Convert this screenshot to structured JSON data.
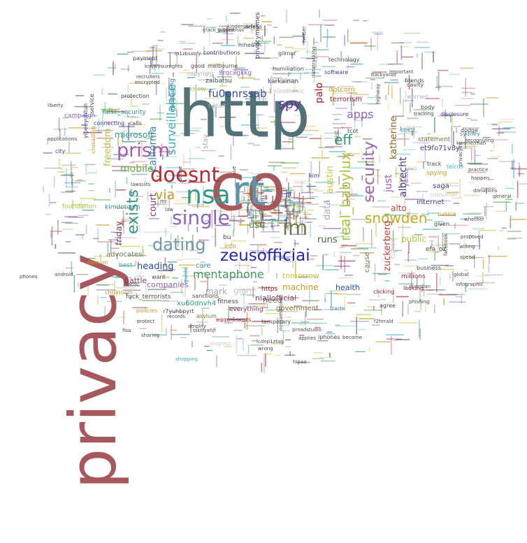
{
  "words": [
    {
      "text": "privacy",
      "color": "#a6585c"
    },
    {
      "text": "http",
      "color": "#52727a"
    },
    {
      "text": "co",
      "color": "#a6585c"
    },
    {
      "text": "rt",
      "color": "#5e93aa"
    },
    {
      "text": "nsa",
      "color": "#2e9a88"
    },
    {
      "text": "doesnt",
      "color": "#b4283a"
    },
    {
      "text": "prism",
      "color": "#a35cae"
    },
    {
      "text": "single",
      "color": "#8e62c0"
    },
    {
      "text": "dating",
      "color": "#6e9aa8"
    },
    {
      "text": "exists",
      "color": "#2e9a88"
    },
    {
      "text": "zeusofficiai",
      "color": "#2626a8"
    },
    {
      "text": "im",
      "color": "#6e7a52"
    },
    {
      "text": "mentaphone",
      "color": "#3f9a5e"
    },
    {
      "text": "security",
      "color": "#9a6aa8"
    },
    {
      "text": "real_babylux",
      "color": "#a8c840"
    },
    {
      "text": "snowden",
      "color": "#c4a820"
    },
    {
      "text": "surveillance",
      "color": "#3fb0c8"
    },
    {
      "text": "spy",
      "color": "#6a2ea8"
    },
    {
      "text": "eff",
      "color": "#2e9a88"
    },
    {
      "text": "via",
      "color": "#c89a20"
    },
    {
      "text": "fu0onrssab",
      "color": "#3a4a9a"
    },
    {
      "text": "mobile",
      "color": "#5eb040"
    },
    {
      "text": "california",
      "color": "#3a8aa0"
    },
    {
      "text": "court",
      "color": "#8a3a6a"
    },
    {
      "text": "apps",
      "color": "#8e62c0"
    },
    {
      "text": "just",
      "color": "#a35cae"
    },
    {
      "text": "katherine",
      "color": "#8a6a20"
    },
    {
      "text": "albrecht",
      "color": "#4a3a8a"
    },
    {
      "text": "zuckerberg",
      "color": "#c84040"
    },
    {
      "text": "alto",
      "color": "#c84040"
    },
    {
      "text": "palo",
      "color": "#a82030"
    },
    {
      "text": "data",
      "color": "#a8a8c8"
    },
    {
      "text": "austin",
      "color": "#c8c840"
    },
    {
      "text": "heading",
      "color": "#2e4ab0"
    },
    {
      "text": "runs",
      "color": "#4a6a4a"
    },
    {
      "text": "use",
      "color": "#6e7a52"
    },
    {
      "text": "friday",
      "color": "#8a3a6a"
    },
    {
      "text": "freedom",
      "color": "#c8b840"
    },
    {
      "text": "microsoft",
      "color": "#2e9a88"
    },
    {
      "text": "public",
      "color": "#a8c840"
    },
    {
      "text": "machine",
      "color": "#c89a20"
    },
    {
      "text": "tomorrow",
      "color": "#c8c840"
    },
    {
      "text": "mark",
      "color": "#a8a8a8"
    },
    {
      "text": "giant",
      "color": "#c8c8c8"
    },
    {
      "text": "need",
      "color": "#6e7a52"
    },
    {
      "text": "health",
      "color": "#2e4ab0"
    },
    {
      "text": "niallofficial",
      "color": "#8a3a6a"
    },
    {
      "text": "government",
      "color": "#8a6a20"
    },
    {
      "text": "battle",
      "color": "#8a3a6a"
    },
    {
      "text": "companies",
      "color": "#8e62c0"
    },
    {
      "text": "care",
      "color": "#3a8aa0"
    },
    {
      "text": "advocates",
      "color": "#6e7a52"
    },
    {
      "text": "best",
      "color": "#3fb0c8"
    },
    {
      "text": "internet",
      "color": "#4a3a8a"
    },
    {
      "text": "tuned",
      "color": "#c8c8c8"
    },
    {
      "text": "cause",
      "color": "#6e7a52"
    },
    {
      "text": "efa_oz",
      "color": "#4a4a4a"
    },
    {
      "text": "millions",
      "color": "#a82030"
    },
    {
      "text": "terrorism",
      "color": "#a82030"
    },
    {
      "text": "dotcom",
      "color": "#c89a20"
    },
    {
      "text": "et9fo71v8y",
      "color": "#4a3a8a"
    },
    {
      "text": "statement",
      "color": "#6e7a52"
    },
    {
      "text": "keep",
      "color": "#3a8aa0"
    },
    {
      "text": "saga",
      "color": "#4a3a8a"
    },
    {
      "text": "russia",
      "color": "#c89a20"
    },
    {
      "text": "xu60dnvh4",
      "color": "#2e9a88"
    },
    {
      "text": "fuck_terrorists",
      "color": "#4a4a4a"
    },
    {
      "text": "everything",
      "color": "#8a3a6a"
    },
    {
      "text": "fitness",
      "color": "#4a4a4a"
    },
    {
      "text": "https",
      "color": "#a82030"
    },
    {
      "text": "bu",
      "color": "#4a4a4a"
    },
    {
      "text": "info",
      "color": "#c89a20"
    },
    {
      "text": "electronic",
      "color": "#c8c8c8"
    },
    {
      "text": "karkainan",
      "color": "#4a3a8a"
    },
    {
      "text": "zaibatsu",
      "color": "#4a4a4a"
    },
    {
      "text": "behalf",
      "color": "#a8a8a8"
    },
    {
      "text": "stay",
      "color": "#a8a8a8"
    },
    {
      "text": "frontier",
      "color": "#6e7a52"
    },
    {
      "text": "know",
      "color": "#a8c840"
    },
    {
      "text": "copyright",
      "color": "#a8a8a8"
    },
    {
      "text": "8rqcxgkkg",
      "color": "#8e62c0"
    },
    {
      "text": "privacymemes",
      "color": "#4a3a8a"
    },
    {
      "text": "humiliation",
      "color": "#4a4a4a"
    },
    {
      "text": "melbourne",
      "color": "#4a4a4a"
    },
    {
      "text": "good",
      "color": "#4a4a4a"
    },
    {
      "text": "messaging",
      "color": "#3a8aa0"
    },
    {
      "text": "false_security",
      "color": "#2e9a88"
    },
    {
      "text": "protection",
      "color": "#4a4a4a"
    },
    {
      "text": "campaign",
      "color": "#8e62c0"
    },
    {
      "text": "service",
      "color": "#4a4a4a"
    },
    {
      "text": "calls",
      "color": "#4a4a4a"
    },
    {
      "text": "connecting",
      "color": "#4a3a8a"
    },
    {
      "text": "city",
      "color": "#4a3a8a"
    },
    {
      "text": "foundation",
      "color": "#a8c840"
    },
    {
      "text": "kimdotcom",
      "color": "#3a8aa0"
    },
    {
      "text": "opinion",
      "color": "#c89a20"
    },
    {
      "text": "want",
      "color": "#4a4a4a"
    },
    {
      "text": "guide",
      "color": "#3fb0c8"
    },
    {
      "text": "sanctions",
      "color": "#4a4a4a"
    },
    {
      "text": "r7yuhbpyrt",
      "color": "#4a4a4a"
    },
    {
      "text": "asylum",
      "color": "#6e7a52"
    },
    {
      "text": "eqqm6sxpzs",
      "color": "#a82030"
    },
    {
      "text": "temporary",
      "color": "#4a4a4a"
    },
    {
      "text": "iphones",
      "color": "#4a4a4a"
    },
    {
      "text": "trade",
      "color": "#3a8aa0"
    },
    {
      "text": "agree",
      "color": "#4a4a4a"
    },
    {
      "text": "clicking",
      "color": "#a82030"
    },
    {
      "text": "looking",
      "color": "#a82030"
    },
    {
      "text": "business",
      "color": "#4a4a4a"
    },
    {
      "text": "spying",
      "color": "#c89a20"
    },
    {
      "text": "consumer",
      "color": "#c8c8c8"
    },
    {
      "text": "yahoo",
      "color": "#8e62c0"
    },
    {
      "text": "talk",
      "color": "#c8c8c8"
    },
    {
      "text": "track",
      "color": "#4a4a4a"
    },
    {
      "text": "telcos",
      "color": "#3fb0c8"
    },
    {
      "text": "given",
      "color": "#4a4a4a"
    },
    {
      "text": "sydney",
      "color": "#3a8aa0"
    },
    {
      "text": "friends",
      "color": "#4a4a4a"
    },
    {
      "text": "worried",
      "color": "#a8a8c8"
    },
    {
      "text": "body",
      "color": "#4a4a4a"
    },
    {
      "text": "disclosure",
      "color": "#4a3a8a"
    },
    {
      "text": "dodge",
      "color": "#4a4a4a"
    },
    {
      "text": "cavity",
      "color": "#4a4a4a"
    },
    {
      "text": "technology",
      "color": "#4a4a4a"
    },
    {
      "text": "software",
      "color": "#4a3a8a"
    },
    {
      "text": "tcot",
      "color": "#4a4a4a"
    },
    {
      "text": "exist",
      "color": "#6e7a52"
    },
    {
      "text": "kim",
      "color": "#4a3a8a"
    },
    {
      "text": "sue",
      "color": "#4a4a4a"
    },
    {
      "text": "lawsuits",
      "color": "#4a4a4a"
    },
    {
      "text": "online",
      "color": "#4a4a4a"
    },
    {
      "text": "law",
      "color": "#4a4a4a"
    },
    {
      "text": "mr",
      "color": "#4a4a4a"
    },
    {
      "text": "gilmor",
      "color": "#4a4a4a"
    },
    {
      "text": "mhealth",
      "color": "#4a4a4a"
    },
    {
      "text": "contributions",
      "color": "#4a3a8a"
    },
    {
      "text": "payment",
      "color": "#4a4a4a"
    },
    {
      "text": "recruiters",
      "color": "#4a4a4a"
    },
    {
      "text": "encrypted",
      "color": "#4a4a4a"
    },
    {
      "text": "liberty",
      "color": "#4a4a4a"
    },
    {
      "text": "applications",
      "color": "#4a4a4a"
    },
    {
      "text": "yipeeyuhtun",
      "color": "#4a3a8a"
    },
    {
      "text": "crusading",
      "color": "#c89a20"
    },
    {
      "text": "phones",
      "color": "#4a4a4a"
    },
    {
      "text": "android",
      "color": "#4a4a4a"
    },
    {
      "text": "shopping",
      "color": "#3fb0c8"
    },
    {
      "text": "fisa",
      "color": "#4a4a4a"
    },
    {
      "text": "sharing",
      "color": "#4a4a4a"
    },
    {
      "text": "christoom",
      "color": "#c89a20"
    },
    {
      "text": "tactic",
      "color": "#4a4a4a"
    },
    {
      "text": "policies",
      "color": "#c89a20"
    },
    {
      "text": "progress",
      "color": "#c8c8c8"
    },
    {
      "text": "wrong",
      "color": "#4a4a4a"
    },
    {
      "text": "hipaa",
      "color": "#4a4a4a"
    },
    {
      "text": "applies",
      "color": "#4a4a4a"
    },
    {
      "text": "become",
      "color": "#4a4a4a"
    },
    {
      "text": "prnadstudio",
      "color": "#4a4a4a"
    },
    {
      "text": "nossamaniaw",
      "color": "#4a4a4a"
    },
    {
      "text": "lcdnp1ztag",
      "color": "#4a4a4a"
    },
    {
      "text": "f2hrrald",
      "color": "#4a4a4a"
    },
    {
      "text": "phishing",
      "color": "#4a4a4a"
    },
    {
      "text": "guardian",
      "color": "#4a4a4a"
    },
    {
      "text": "infographic",
      "color": "#4a4a4a"
    },
    {
      "text": "global",
      "color": "#4a4a4a"
    },
    {
      "text": "spend",
      "color": "#4a4a4a"
    },
    {
      "text": "willing",
      "color": "#4a4a4a"
    },
    {
      "text": "proposed",
      "color": "#4a4a4a"
    },
    {
      "text": "whether",
      "color": "#4a4a4a"
    },
    {
      "text": "donations",
      "color": "#4a4a4a"
    },
    {
      "text": "general",
      "color": "#4a4a4a"
    },
    {
      "text": "happen",
      "color": "#4a4a4a"
    },
    {
      "text": "practice",
      "color": "#4a4a4a"
    },
    {
      "text": "kimmerman",
      "color": "#4a4a4a"
    },
    {
      "text": "recognizing",
      "color": "#4a4a4a"
    },
    {
      "text": "privacyint",
      "color": "#4a4a4a"
    },
    {
      "text": "facebook",
      "color": "#4a4a4a"
    },
    {
      "text": "tracking",
      "color": "#4a4a4a"
    },
    {
      "text": "highway",
      "color": "#4a4a4a"
    },
    {
      "text": "important",
      "color": "#4a4a4a"
    },
    {
      "text": "backyards",
      "color": "#4a4a4a"
    },
    {
      "text": "datatracking",
      "color": "#4a4a4a"
    },
    {
      "text": "crack_pissed",
      "color": "#4a4a4a"
    },
    {
      "text": "ip1zbsxofy",
      "color": "#4a4a4a"
    },
    {
      "text": "knowyourrights",
      "color": "#4a4a4a"
    },
    {
      "text": "kindergarten",
      "color": "#4a4a4a"
    },
    {
      "text": "subpoenas",
      "color": "#4a4a4a"
    },
    {
      "text": "twitter",
      "color": "#4a4a4a"
    },
    {
      "text": "protect",
      "color": "#4a4a4a"
    },
    {
      "text": "amplify",
      "color": "#4a4a4a"
    },
    {
      "text": "records",
      "color": "#4a4a4a"
    },
    {
      "text": "defend",
      "color": "#4a4a4a"
    },
    {
      "text": "tsktfyxhjf",
      "color": "#4a4a4a"
    },
    {
      "text": "kofiyq",
      "color": "#4a4a4a"
    },
    {
      "text": "netfreedom",
      "color": "#4a4a4a"
    },
    {
      "text": "wajmsbbj",
      "color": "#4a4a4a"
    },
    {
      "text": "rjantymbf",
      "color": "#4a4a4a"
    }
  ]
}
